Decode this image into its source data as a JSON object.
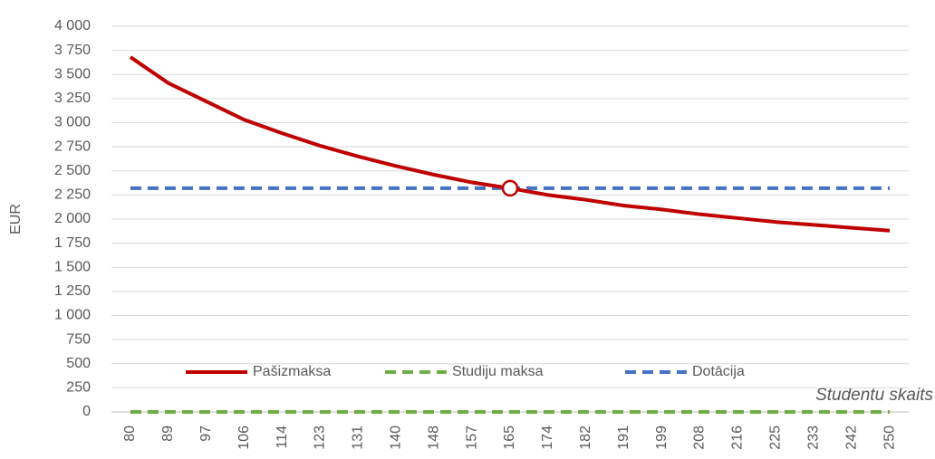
{
  "chart_data": {
    "type": "line",
    "y_label": "EUR",
    "x_label": "Studentu skaits",
    "categories": [
      80,
      89,
      97,
      106,
      114,
      123,
      131,
      140,
      148,
      157,
      165,
      174,
      182,
      191,
      199,
      208,
      216,
      225,
      233,
      242,
      250
    ],
    "series": [
      {
        "name": "Pašizmaksa",
        "color": "#c00000",
        "dashed": false,
        "values": [
          3680,
          3410,
          3220,
          3030,
          2890,
          2760,
          2650,
          2550,
          2460,
          2380,
          2320,
          2250,
          2200,
          2140,
          2100,
          2050,
          2010,
          1970,
          1940,
          1910,
          1880
        ]
      },
      {
        "name": "Studiju maksa",
        "color": "#70ad47",
        "dashed": true,
        "values": [
          0,
          0,
          0,
          0,
          0,
          0,
          0,
          0,
          0,
          0,
          0,
          0,
          0,
          0,
          0,
          0,
          0,
          0,
          0,
          0,
          0
        ]
      },
      {
        "name": "Dotācija",
        "color": "#4472c4",
        "dashed": true,
        "values": [
          2320,
          2320,
          2320,
          2320,
          2320,
          2320,
          2320,
          2320,
          2320,
          2320,
          2320,
          2320,
          2320,
          2320,
          2320,
          2320,
          2320,
          2320,
          2320,
          2320,
          2320
        ]
      }
    ],
    "highlight": 165,
    "ylim": [
      0,
      4000
    ],
    "yticks": [
      0,
      250,
      500,
      750,
      {
        "value": 1000,
        "label": "1 000"
      },
      {
        "value": 1250,
        "label": "1 250"
      },
      {
        "value": 1500,
        "label": "1 500"
      },
      {
        "value": 1750,
        "label": "1 750"
      },
      {
        "value": 2000,
        "label": "2 000"
      },
      {
        "value": 2250,
        "label": "2 250"
      },
      {
        "value": 2500,
        "label": "2 500"
      },
      {
        "value": 2750,
        "label": "2 750"
      },
      {
        "value": 3000,
        "label": "3 000"
      },
      {
        "value": 3250,
        "label": "3 250"
      },
      {
        "value": 3500,
        "label": "3 500"
      },
      {
        "value": 3750,
        "label": "3 750"
      },
      {
        "value": 4000,
        "label": "4 000"
      }
    ],
    "grid": true,
    "legend": "bottom"
  }
}
